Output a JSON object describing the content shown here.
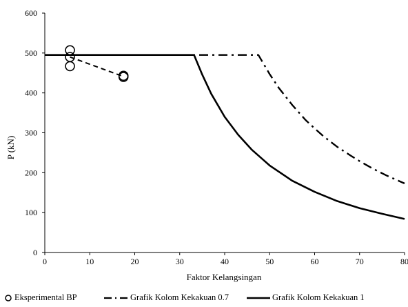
{
  "chart_data": {
    "type": "line",
    "title": "",
    "xlabel": "Faktor Kelangsingan",
    "ylabel": "P (kN)",
    "xlim": [
      0,
      80
    ],
    "ylim": [
      0,
      600
    ],
    "xticks": [
      0,
      10,
      20,
      30,
      40,
      50,
      60,
      70,
      80
    ],
    "yticks": [
      0,
      100,
      200,
      300,
      400,
      500,
      600
    ],
    "xtick_labels": [
      "0",
      "10",
      "20",
      "30",
      "40",
      "50",
      "60",
      "70",
      "80"
    ],
    "ytick_labels": [
      "0",
      "100",
      "200",
      "300",
      "400",
      "500",
      "600"
    ],
    "grid": false,
    "legend_position": "bottom",
    "series": [
      {
        "name": "Eksperimental BP",
        "style": "markers-dashed",
        "color": "#000000",
        "points": [
          {
            "x": 5.6,
            "y": 507
          },
          {
            "x": 5.6,
            "y": 490
          },
          {
            "x": 5.6,
            "y": 467
          },
          {
            "x": 17.5,
            "y": 443
          },
          {
            "x": 17.5,
            "y": 440
          }
        ],
        "trend": [
          {
            "x": 5.6,
            "y": 490
          },
          {
            "x": 17.5,
            "y": 441
          }
        ]
      },
      {
        "name": "Grafik Kolom Kekakuan 0.7",
        "style": "dash-dot",
        "color": "#000000",
        "points": [
          {
            "x": 0,
            "y": 495
          },
          {
            "x": 47.5,
            "y": 495
          },
          {
            "x": 50,
            "y": 447
          },
          {
            "x": 52,
            "y": 413
          },
          {
            "x": 55,
            "y": 370
          },
          {
            "x": 58,
            "y": 332
          },
          {
            "x": 60,
            "y": 311
          },
          {
            "x": 62,
            "y": 291
          },
          {
            "x": 65,
            "y": 265
          },
          {
            "x": 68,
            "y": 243
          },
          {
            "x": 70,
            "y": 229
          },
          {
            "x": 73,
            "y": 210
          },
          {
            "x": 76,
            "y": 193
          },
          {
            "x": 78,
            "y": 183
          },
          {
            "x": 80,
            "y": 173
          }
        ]
      },
      {
        "name": "Grafik Kolom Kekakuan 1",
        "style": "solid",
        "color": "#000000",
        "points": [
          {
            "x": 0,
            "y": 495
          },
          {
            "x": 33.2,
            "y": 495
          },
          {
            "x": 35,
            "y": 446
          },
          {
            "x": 37,
            "y": 398
          },
          {
            "x": 40,
            "y": 340
          },
          {
            "x": 43,
            "y": 295
          },
          {
            "x": 46,
            "y": 258
          },
          {
            "x": 50,
            "y": 218
          },
          {
            "x": 55,
            "y": 180
          },
          {
            "x": 60,
            "y": 152
          },
          {
            "x": 65,
            "y": 129
          },
          {
            "x": 70,
            "y": 111
          },
          {
            "x": 75,
            "y": 97
          },
          {
            "x": 80,
            "y": 84
          }
        ]
      }
    ]
  }
}
